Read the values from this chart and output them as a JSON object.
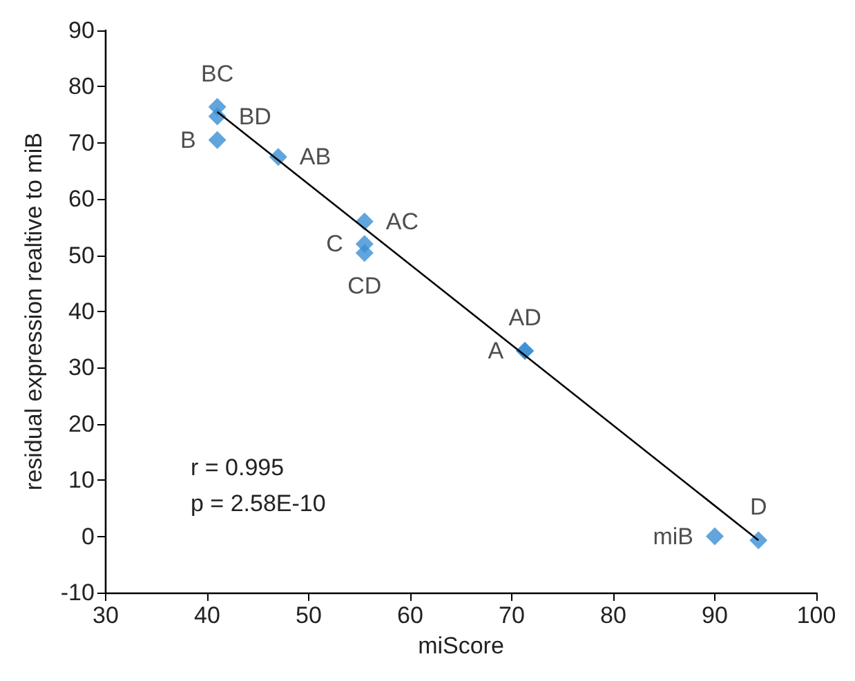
{
  "chart_data": {
    "type": "scatter",
    "xlabel": "miScore",
    "ylabel": "residual expression realtive to miB",
    "xlim": [
      30,
      100
    ],
    "ylim": [
      -10,
      90
    ],
    "xticks": [
      30,
      40,
      50,
      60,
      70,
      80,
      90,
      100
    ],
    "yticks": [
      -10,
      0,
      10,
      20,
      30,
      40,
      50,
      60,
      70,
      80,
      90
    ],
    "grid": false,
    "marker": "diamond",
    "annotations": [
      "r = 0.995",
      "p = 2.58E-10"
    ],
    "series": [
      {
        "color": "#3a8fd3",
        "x": [
          41,
          41,
          41,
          47,
          55.5,
          55.5,
          55.5,
          71.3,
          71.3,
          90,
          94.3
        ],
        "values": [
          76.4,
          74.7,
          70.5,
          67.5,
          56,
          52,
          50.4,
          33,
          33,
          0,
          -0.7
        ],
        "value_labels": [
          "BC",
          "BD",
          "B",
          "AB",
          "AC",
          "C",
          "CD",
          "AD",
          "A",
          "miB",
          "D"
        ]
      },
      {
        "type": "line",
        "color": "#000000",
        "x": [
          41,
          94.3
        ],
        "values": [
          75.5,
          -0.7
        ],
        "marker": "none",
        "line_style": "solid"
      }
    ]
  }
}
